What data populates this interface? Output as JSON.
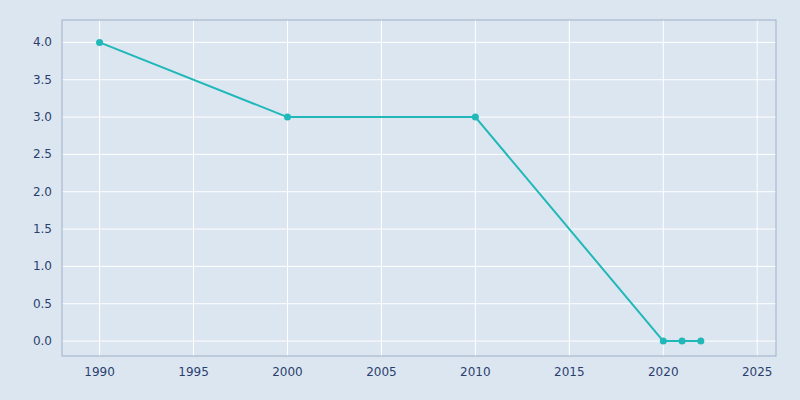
{
  "chart_data": {
    "type": "line",
    "x": [
      1990,
      2000,
      2010,
      2020,
      2021,
      2022
    ],
    "values": [
      4,
      3,
      3,
      0,
      0,
      0
    ],
    "color": "#20b8b8",
    "marker": "circle",
    "xlim": [
      1988,
      2026
    ],
    "ylim": [
      -0.2,
      4.3
    ],
    "xticks": [
      1990,
      1995,
      2000,
      2005,
      2010,
      2015,
      2020,
      2025
    ],
    "yticks": [
      {
        "value": 0,
        "label": "0.0"
      },
      0.5,
      {
        "value": 1.0,
        "label": "1.0"
      },
      1.5,
      {
        "value": 2.0,
        "label": "2.0"
      },
      2.5,
      {
        "value": 3.0,
        "label": "3.0"
      },
      3.5,
      {
        "value": 4.0,
        "label": "4.0"
      }
    ],
    "grid": true
  }
}
